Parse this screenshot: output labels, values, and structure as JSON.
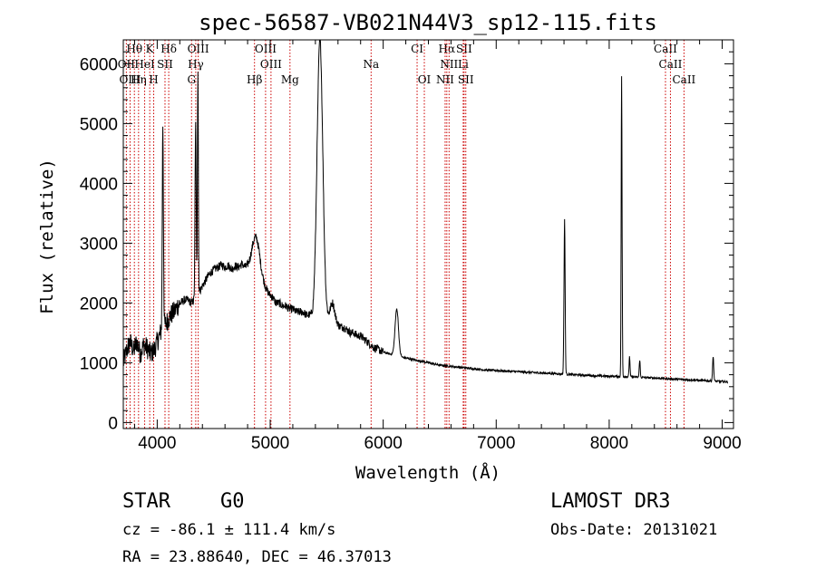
{
  "chart_data": {
    "type": "line",
    "title": "spec-56587-VB021N44V3_sp12-115.fits",
    "xlabel": "Wavelength (Å)",
    "ylabel": "Flux (relative)",
    "xlim": [
      3700,
      9100
    ],
    "ylim": [
      -100,
      6400
    ],
    "xticks": [
      4000,
      5000,
      6000,
      7000,
      8000,
      9000
    ],
    "yticks": [
      0,
      1000,
      2000,
      3000,
      4000,
      5000,
      6000
    ],
    "series": [
      {
        "name": "flux",
        "continuum": [
          [
            3700,
            1000
          ],
          [
            3730,
            1200
          ],
          [
            3760,
            1350
          ],
          [
            3790,
            1200
          ],
          [
            3820,
            1350
          ],
          [
            3850,
            1150
          ],
          [
            3880,
            1300
          ],
          [
            3910,
            1250
          ],
          [
            3940,
            1150
          ],
          [
            3970,
            1200
          ],
          [
            4000,
            1350
          ],
          [
            4030,
            1500
          ],
          [
            4060,
            1600
          ],
          [
            4090,
            1700
          ],
          [
            4120,
            1800
          ],
          [
            4150,
            1850
          ],
          [
            4180,
            1950
          ],
          [
            4210,
            2000
          ],
          [
            4240,
            2050
          ],
          [
            4270,
            2050
          ],
          [
            4300,
            2000
          ],
          [
            4330,
            2050
          ],
          [
            4360,
            2150
          ],
          [
            4390,
            2250
          ],
          [
            4420,
            2350
          ],
          [
            4450,
            2450
          ],
          [
            4480,
            2520
          ],
          [
            4510,
            2570
          ],
          [
            4540,
            2600
          ],
          [
            4570,
            2640
          ],
          [
            4600,
            2600
          ],
          [
            4630,
            2630
          ],
          [
            4660,
            2560
          ],
          [
            4690,
            2620
          ],
          [
            4720,
            2600
          ],
          [
            4750,
            2650
          ],
          [
            4780,
            2600
          ],
          [
            4810,
            2620
          ],
          [
            4840,
            2650
          ],
          [
            4870,
            2700
          ],
          [
            4900,
            2550
          ],
          [
            4930,
            2400
          ],
          [
            4960,
            2250
          ],
          [
            4990,
            2150
          ],
          [
            5020,
            2100
          ],
          [
            5050,
            2000
          ],
          [
            5080,
            2000
          ],
          [
            5110,
            1950
          ],
          [
            5140,
            1950
          ],
          [
            5170,
            1900
          ],
          [
            5200,
            1900
          ],
          [
            5230,
            1850
          ],
          [
            5260,
            1850
          ],
          [
            5290,
            1850
          ],
          [
            5320,
            1800
          ],
          [
            5350,
            1800
          ],
          [
            5380,
            1750
          ],
          [
            5410,
            1800
          ],
          [
            5440,
            1850
          ],
          [
            5470,
            1800
          ],
          [
            5500,
            1750
          ],
          [
            5530,
            1700
          ],
          [
            5560,
            1650
          ],
          [
            5590,
            1650
          ],
          [
            5620,
            1600
          ],
          [
            5650,
            1600
          ],
          [
            5680,
            1550
          ],
          [
            5710,
            1500
          ],
          [
            5740,
            1500
          ],
          [
            5770,
            1450
          ],
          [
            5800,
            1450
          ],
          [
            5830,
            1400
          ],
          [
            5860,
            1350
          ],
          [
            5890,
            1300
          ],
          [
            5920,
            1250
          ],
          [
            5950,
            1230
          ],
          [
            5980,
            1200
          ],
          [
            6000,
            1180
          ],
          [
            6050,
            1150
          ],
          [
            6100,
            1130
          ],
          [
            6150,
            1100
          ],
          [
            6200,
            1080
          ],
          [
            6250,
            1060
          ],
          [
            6300,
            1040
          ],
          [
            6350,
            1020
          ],
          [
            6400,
            1000
          ],
          [
            6450,
            980
          ],
          [
            6500,
            960
          ],
          [
            6550,
            950
          ],
          [
            6600,
            940
          ],
          [
            6700,
            920
          ],
          [
            6800,
            900
          ],
          [
            6900,
            880
          ],
          [
            7000,
            870
          ],
          [
            7100,
            860
          ],
          [
            7200,
            850
          ],
          [
            7300,
            840
          ],
          [
            7400,
            830
          ],
          [
            7500,
            820
          ],
          [
            7600,
            810
          ],
          [
            7700,
            800
          ],
          [
            7800,
            790
          ],
          [
            7900,
            780
          ],
          [
            8000,
            775
          ],
          [
            8100,
            770
          ],
          [
            8200,
            765
          ],
          [
            8300,
            755
          ],
          [
            8400,
            745
          ],
          [
            8500,
            735
          ],
          [
            8600,
            725
          ],
          [
            8700,
            715
          ],
          [
            8800,
            705
          ],
          [
            8900,
            695
          ],
          [
            9000,
            685
          ],
          [
            9050,
            680
          ]
        ],
        "peaks": [
          [
            4050,
            5000,
            5
          ],
          [
            4340,
            5000,
            5
          ],
          [
            4360,
            5900,
            4
          ],
          [
            4870,
            3100,
            30
          ],
          [
            5440,
            6400,
            25
          ],
          [
            5550,
            2000,
            20
          ],
          [
            6120,
            1900,
            15
          ],
          [
            7605,
            3400,
            5
          ],
          [
            8110,
            5800,
            4
          ],
          [
            8180,
            1100,
            4
          ],
          [
            8270,
            1050,
            4
          ],
          [
            8920,
            1100,
            5
          ]
        ]
      }
    ],
    "spectral_lines": [
      {
        "label": "Hθ",
        "wavelength": 3798,
        "row": 1
      },
      {
        "label": "K",
        "wavelength": 3934,
        "row": 1
      },
      {
        "label": "Hδ",
        "wavelength": 4102,
        "row": 1
      },
      {
        "label": "OIII",
        "wavelength": 4363,
        "row": 1
      },
      {
        "label": "OIII",
        "wavelength": 4959,
        "row": 1
      },
      {
        "label": "CI",
        "wavelength": 6300,
        "row": 1
      },
      {
        "label": "Hα",
        "wavelength": 6563,
        "row": 1
      },
      {
        "label": "SII",
        "wavelength": 6716,
        "row": 1
      },
      {
        "label": "CaII",
        "wavelength": 8498,
        "row": 1
      },
      {
        "label": "OII",
        "wavelength": 3727,
        "row": 2
      },
      {
        "label": "HeI",
        "wavelength": 3889,
        "row": 2
      },
      {
        "label": "SII",
        "wavelength": 4069,
        "row": 2
      },
      {
        "label": "Hγ",
        "wavelength": 4341,
        "row": 2
      },
      {
        "label": "OIII",
        "wavelength": 5007,
        "row": 2
      },
      {
        "label": "Na",
        "wavelength": 5893,
        "row": 2
      },
      {
        "label": "NII",
        "wavelength": 6583,
        "row": 2
      },
      {
        "label": "Li",
        "wavelength": 6708,
        "row": 2
      },
      {
        "label": "CaII",
        "wavelength": 8542,
        "row": 2
      },
      {
        "label": "OIII",
        "wavelength": 3760,
        "row": 3
      },
      {
        "label": "Hη",
        "wavelength": 3835,
        "row": 3
      },
      {
        "label": "H",
        "wavelength": 3969,
        "row": 3
      },
      {
        "label": "G",
        "wavelength": 4304,
        "row": 3
      },
      {
        "label": "Hβ",
        "wavelength": 4861,
        "row": 3
      },
      {
        "label": "Mg",
        "wavelength": 5175,
        "row": 3
      },
      {
        "label": "OI",
        "wavelength": 6364,
        "row": 3
      },
      {
        "label": "NII",
        "wavelength": 6548,
        "row": 3
      },
      {
        "label": "SII",
        "wavelength": 6731,
        "row": 3
      },
      {
        "label": "CaII",
        "wavelength": 8662,
        "row": 3
      }
    ]
  },
  "info": {
    "object_class": "STAR",
    "subclass": "G0",
    "cz": "cz = -86.1 ± 111.4 km/s",
    "coords": "RA =  23.88640, DEC =  46.37013",
    "survey": "LAMOST DR3",
    "obs_date": "Obs-Date: 20131021"
  }
}
